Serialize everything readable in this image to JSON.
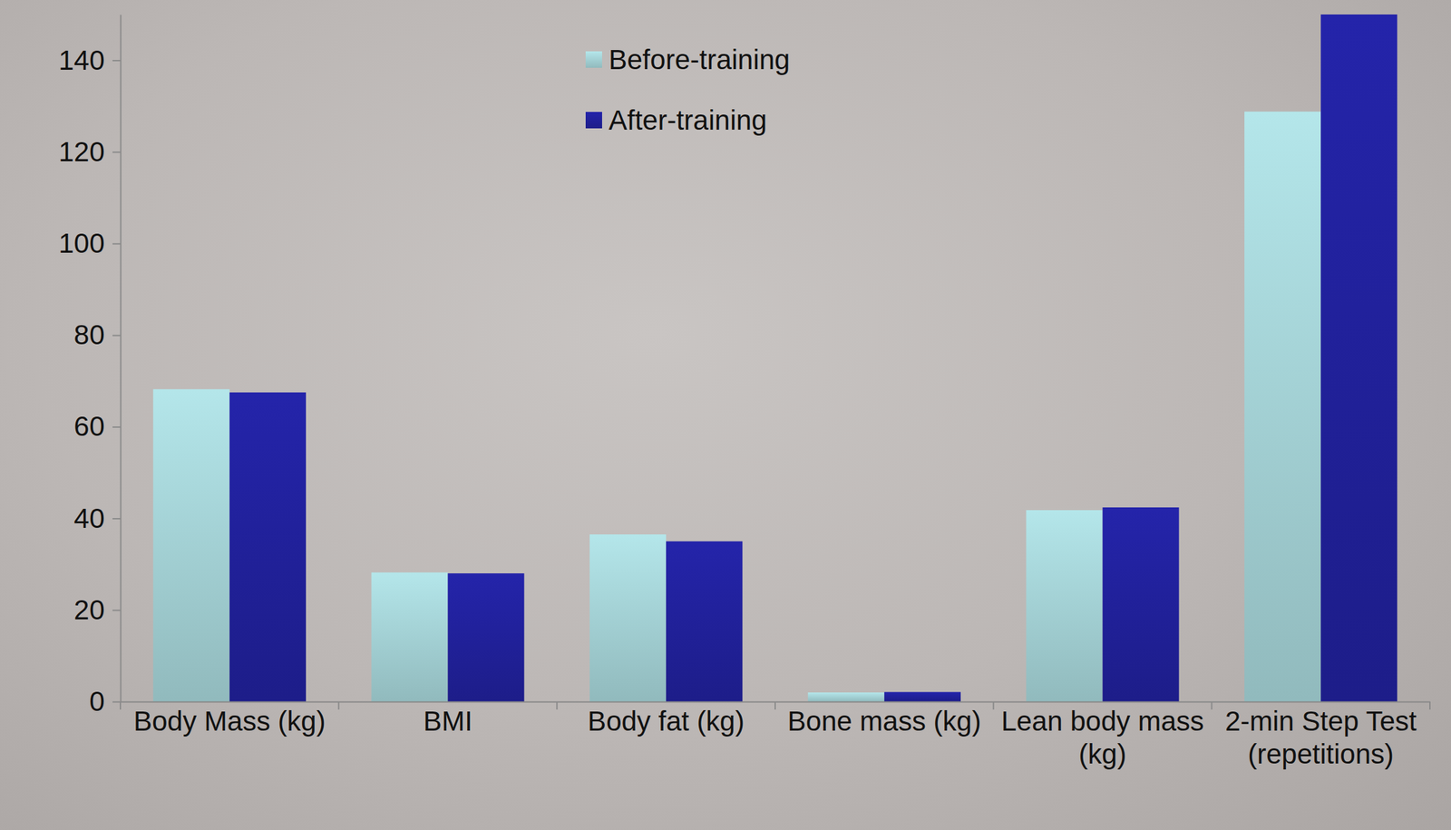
{
  "chart_data": {
    "type": "bar",
    "categories": [
      "Body Mass (kg)",
      "BMI",
      "Body fat (kg)",
      "Bone mass (kg)",
      "Lean body mass (kg)",
      "2-min Step Test (repetitions)"
    ],
    "series": [
      {
        "name": "Before-training",
        "color": "#b4e6ea",
        "values": [
          68.2,
          28.2,
          36.5,
          2.0,
          41.8,
          128.8
        ]
      },
      {
        "name": "After-training",
        "color": "#2424aa",
        "values": [
          67.5,
          28.0,
          35.0,
          2.1,
          42.4,
          150
        ]
      }
    ],
    "ylim": [
      0,
      150
    ],
    "yticks": [
      0,
      20,
      40,
      60,
      80,
      100,
      120,
      140
    ],
    "legend": "top",
    "grid": false
  }
}
